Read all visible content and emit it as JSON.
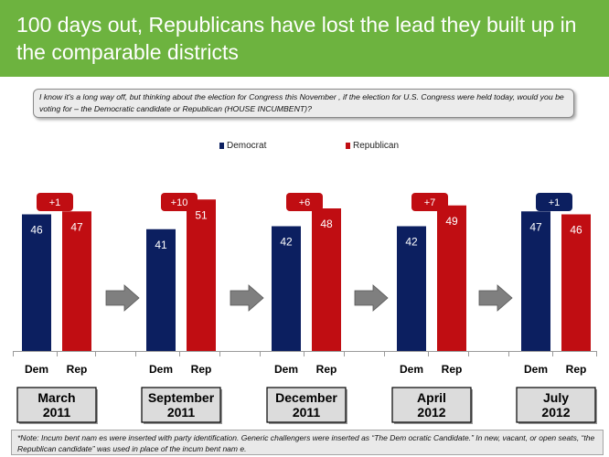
{
  "header": {
    "title": "100 days out, Republicans have lost the lead they built up in the comparable districts"
  },
  "question": "I know it's a long way off, but thinking about the election for Congress this November , if the election for U.S. Congress were held today, would you be voting for – the Democratic candidate or Republican (HOUSE INCUMBENT)?",
  "legend": {
    "democrat": "Democrat",
    "republican": "Republican"
  },
  "colors": {
    "democrat": "#0c1f60",
    "republican": "#c00d12",
    "header": "#6db33f",
    "arrow": "#7f7f7f"
  },
  "chart_data": {
    "type": "bar",
    "categories": [
      "March 2011",
      "September 2011",
      "December 2011",
      "April 2012",
      "July 2012"
    ],
    "category_lines": [
      [
        "March",
        "2011"
      ],
      [
        "September",
        "2011"
      ],
      [
        "December",
        "2011"
      ],
      [
        "April",
        "2012"
      ],
      [
        "July",
        "2012"
      ]
    ],
    "bar_labels": [
      "Dem",
      "Rep"
    ],
    "series": [
      {
        "name": "Democrat",
        "values": [
          46,
          41,
          42,
          42,
          47
        ]
      },
      {
        "name": "Republican",
        "values": [
          47,
          51,
          48,
          49,
          46
        ]
      }
    ],
    "margins": [
      {
        "label": "+1",
        "party": "republican"
      },
      {
        "label": "+10",
        "party": "republican"
      },
      {
        "label": "+6",
        "party": "republican"
      },
      {
        "label": "+7",
        "party": "republican"
      },
      {
        "label": "+1",
        "party": "democrat"
      }
    ],
    "legend_position": "top",
    "ylim": [
      0,
      60
    ],
    "grid": false
  },
  "footnote": "*Note: Incum bent nam es were inserted with party identification.  Generic challengers were inserted as “The Dem ocratic Candidate.” In new, vacant, or open seats, “the Republican candidate” was used in place of the incum bent nam e."
}
